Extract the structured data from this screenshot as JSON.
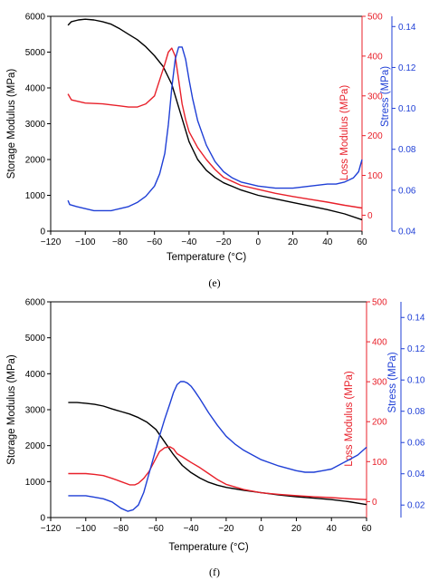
{
  "chart_data": [
    {
      "type": "line",
      "panel_label": "(e)",
      "xlabel": "Temperature (°C)",
      "xlim": [
        -120,
        60
      ],
      "xticks": [
        -120,
        -100,
        -80,
        -60,
        -40,
        -20,
        0,
        20,
        40,
        60
      ],
      "y_axes": {
        "left": {
          "label": "Storage Modulus (MPa)",
          "lim": [
            0,
            6000
          ],
          "ticks": [
            0,
            1000,
            2000,
            3000,
            4000,
            5000,
            6000
          ],
          "color": "#000000"
        },
        "right1": {
          "label": "Loss Modulus (MPa)",
          "lim": [
            -40,
            500
          ],
          "ticks": [
            0,
            100,
            200,
            300,
            400,
            500
          ],
          "color": "#e8202a"
        },
        "right2": {
          "label": "Stress (MPa)",
          "lim": [
            0.04,
            0.145
          ],
          "ticks": [
            0.04,
            0.06,
            0.08,
            0.1,
            0.12,
            0.14
          ],
          "color": "#1f3fd6"
        }
      },
      "series": [
        {
          "axis": "left",
          "color": "#000000",
          "x": [
            -110,
            -108,
            -104,
            -100,
            -95,
            -90,
            -85,
            -80,
            -75,
            -70,
            -65,
            -60,
            -55,
            -50,
            -45,
            -40,
            -35,
            -30,
            -25,
            -20,
            -10,
            0,
            10,
            20,
            30,
            40,
            50,
            60
          ],
          "y": [
            5750,
            5850,
            5900,
            5920,
            5900,
            5850,
            5780,
            5650,
            5500,
            5350,
            5150,
            4900,
            4600,
            4100,
            3300,
            2500,
            2000,
            1700,
            1500,
            1350,
            1150,
            1000,
            900,
            800,
            700,
            600,
            480,
            320
          ]
        },
        {
          "axis": "right1",
          "color": "#e8202a",
          "x": [
            -110,
            -108,
            -100,
            -90,
            -80,
            -75,
            -70,
            -65,
            -60,
            -57,
            -54,
            -52,
            -50,
            -48,
            -46,
            -44,
            -42,
            -40,
            -35,
            -30,
            -25,
            -20,
            -10,
            0,
            10,
            20,
            30,
            40,
            50,
            60
          ],
          "y": [
            305,
            290,
            282,
            280,
            275,
            272,
            272,
            280,
            300,
            340,
            380,
            410,
            420,
            400,
            340,
            280,
            240,
            210,
            170,
            140,
            115,
            95,
            75,
            65,
            55,
            47,
            40,
            33,
            25,
            18
          ]
        },
        {
          "axis": "right2",
          "color": "#1f3fd6",
          "x": [
            -110,
            -109,
            -105,
            -100,
            -95,
            -90,
            -85,
            -80,
            -75,
            -70,
            -65,
            -60,
            -57,
            -54,
            -52,
            -50,
            -48,
            -46,
            -44,
            -42,
            -40,
            -38,
            -35,
            -30,
            -25,
            -20,
            -15,
            -10,
            -5,
            0,
            10,
            20,
            30,
            40,
            45,
            50,
            55,
            58,
            60
          ],
          "y": [
            0.055,
            0.053,
            0.052,
            0.051,
            0.05,
            0.05,
            0.05,
            0.051,
            0.052,
            0.054,
            0.057,
            0.062,
            0.068,
            0.078,
            0.092,
            0.11,
            0.124,
            0.13,
            0.13,
            0.124,
            0.114,
            0.105,
            0.094,
            0.082,
            0.074,
            0.069,
            0.066,
            0.064,
            0.063,
            0.062,
            0.061,
            0.061,
            0.062,
            0.063,
            0.063,
            0.064,
            0.066,
            0.069,
            0.075
          ]
        }
      ]
    },
    {
      "type": "line",
      "panel_label": "(f)",
      "xlabel": "Temperature (°C)",
      "xlim": [
        -120,
        60
      ],
      "xticks": [
        -120,
        -100,
        -80,
        -60,
        -40,
        -20,
        0,
        20,
        40,
        60
      ],
      "y_axes": {
        "left": {
          "label": "Storage Modulus (MPa)",
          "lim": [
            0,
            6000
          ],
          "ticks": [
            0,
            1000,
            2000,
            3000,
            4000,
            5000,
            6000
          ],
          "color": "#000000"
        },
        "right1": {
          "label": "Loss Modulus (MPa)",
          "lim": [
            -40,
            500
          ],
          "ticks": [
            0,
            100,
            200,
            300,
            400,
            500
          ],
          "color": "#e8202a"
        },
        "right2": {
          "label": "Stress (MPa)",
          "lim": [
            0.012,
            0.15
          ],
          "ticks": [
            0.02,
            0.04,
            0.06,
            0.08,
            0.1,
            0.12,
            0.14
          ],
          "color": "#1f3fd6"
        }
      },
      "series": [
        {
          "axis": "left",
          "color": "#000000",
          "x": [
            -110,
            -105,
            -100,
            -95,
            -90,
            -85,
            -80,
            -75,
            -70,
            -65,
            -60,
            -55,
            -50,
            -45,
            -40,
            -35,
            -30,
            -25,
            -20,
            -10,
            0,
            10,
            20,
            30,
            40,
            50,
            60
          ],
          "y": [
            3200,
            3200,
            3180,
            3150,
            3100,
            3020,
            2950,
            2880,
            2780,
            2650,
            2450,
            2100,
            1750,
            1450,
            1250,
            1100,
            980,
            900,
            840,
            760,
            690,
            630,
            580,
            540,
            500,
            440,
            360
          ]
        },
        {
          "axis": "right1",
          "color": "#e8202a",
          "x": [
            -110,
            -105,
            -100,
            -95,
            -90,
            -85,
            -80,
            -75,
            -72,
            -70,
            -67,
            -64,
            -61,
            -58,
            -55,
            -52,
            -50,
            -48,
            -45,
            -40,
            -35,
            -30,
            -25,
            -20,
            -10,
            0,
            10,
            20,
            30,
            40,
            50,
            60
          ],
          "y": [
            70,
            70,
            70,
            68,
            65,
            58,
            50,
            42,
            42,
            46,
            58,
            75,
            100,
            125,
            135,
            137,
            132,
            120,
            112,
            98,
            85,
            70,
            55,
            43,
            30,
            22,
            18,
            15,
            12,
            10,
            7,
            5
          ]
        },
        {
          "axis": "right2",
          "color": "#1f3fd6",
          "x": [
            -110,
            -105,
            -100,
            -95,
            -90,
            -85,
            -80,
            -76,
            -73,
            -70,
            -67,
            -64,
            -61,
            -58,
            -55,
            -52,
            -50,
            -48,
            -46,
            -44,
            -42,
            -40,
            -38,
            -35,
            -30,
            -25,
            -20,
            -15,
            -10,
            -5,
            0,
            10,
            20,
            25,
            30,
            35,
            40,
            45,
            50,
            55,
            60
          ],
          "y": [
            0.026,
            0.026,
            0.026,
            0.025,
            0.024,
            0.022,
            0.018,
            0.016,
            0.017,
            0.02,
            0.028,
            0.04,
            0.052,
            0.064,
            0.075,
            0.085,
            0.092,
            0.097,
            0.099,
            0.099,
            0.098,
            0.096,
            0.093,
            0.088,
            0.079,
            0.071,
            0.064,
            0.059,
            0.055,
            0.052,
            0.049,
            0.045,
            0.042,
            0.041,
            0.041,
            0.042,
            0.043,
            0.046,
            0.049,
            0.052,
            0.057
          ]
        }
      ]
    }
  ]
}
